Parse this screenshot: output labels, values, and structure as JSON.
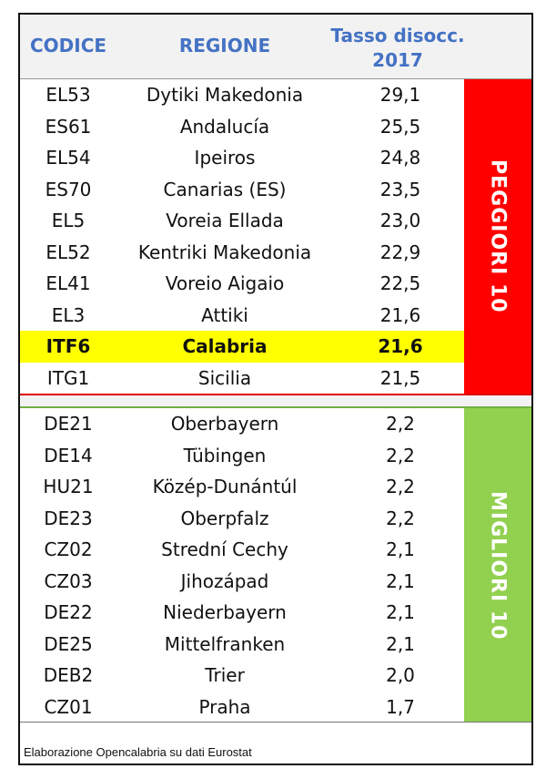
{
  "header": {
    "code": "CODICE",
    "region": "REGIONE",
    "rate_line1": "Tasso disocc.",
    "rate_line2": "2017"
  },
  "worst": {
    "label": "PEGGIORI 10",
    "color": "#ff0000",
    "rows": [
      {
        "code": "EL53",
        "region": "Dytiki Makedonia",
        "rate": "29,1"
      },
      {
        "code": "ES61",
        "region": "Andalucía",
        "rate": "25,5"
      },
      {
        "code": "EL54",
        "region": "Ipeiros",
        "rate": "24,8"
      },
      {
        "code": "ES70",
        "region": "Canarias (ES)",
        "rate": "23,5"
      },
      {
        "code": "EL5",
        "region": "Voreia Ellada",
        "rate": "23,0"
      },
      {
        "code": "EL52",
        "region": "Kentriki Makedonia",
        "rate": "22,9"
      },
      {
        "code": "EL41",
        "region": "Voreio Aigaio",
        "rate": "22,5"
      },
      {
        "code": "EL3",
        "region": "Attiki",
        "rate": "21,6"
      },
      {
        "code": "ITF6",
        "region": "Calabria",
        "rate": "21,6"
      },
      {
        "code": "ITG1",
        "region": "Sicilia",
        "rate": "21,5"
      }
    ]
  },
  "best": {
    "label": "MIGLIORI 10",
    "color": "#92d050",
    "rows": [
      {
        "code": "DE21",
        "region": "Oberbayern",
        "rate": "2,2"
      },
      {
        "code": "DE14",
        "region": "Tübingen",
        "rate": "2,2"
      },
      {
        "code": "HU21",
        "region": "Közép-Dunántúl",
        "rate": "2,2"
      },
      {
        "code": "DE23",
        "region": "Oberpfalz",
        "rate": "2,2"
      },
      {
        "code": "CZ02",
        "region": "Strední Cechy",
        "rate": "2,1"
      },
      {
        "code": "CZ03",
        "region": "Jihozápad",
        "rate": "2,1"
      },
      {
        "code": "DE22",
        "region": "Niederbayern",
        "rate": "2,1"
      },
      {
        "code": "DE25",
        "region": "Mittelfranken",
        "rate": "2,1"
      },
      {
        "code": "DEB2",
        "region": "Trier",
        "rate": "2,0"
      },
      {
        "code": "CZ01",
        "region": "Praha",
        "rate": "1,7"
      }
    ]
  },
  "highlight": {
    "row_index": 8,
    "color": "#ffff00"
  },
  "footer": {
    "source": "Elaborazione Opencalabria su dati Eurostat"
  }
}
